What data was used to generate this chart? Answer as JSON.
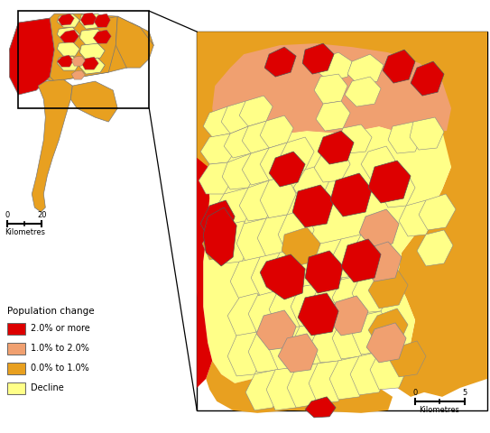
{
  "legend_title": "Population change",
  "legend_items": [
    {
      "label": "2.0% or more",
      "color": "#DD0000"
    },
    {
      "label": "1.0% to 2.0%",
      "color": "#F0A070"
    },
    {
      "label": "0.0% to 1.0%",
      "color": "#E8A020"
    },
    {
      "label": "Decline",
      "color": "#FFFF88"
    }
  ],
  "colors": {
    "red": "#DD0000",
    "orange": "#F0A070",
    "gold": "#E8A020",
    "yellow": "#FFFF88",
    "pale_yellow": "#FFFFBB",
    "border": "#555555",
    "background": "#FFFFFF"
  },
  "scale_small": {
    "label0": "0",
    "label1": "20",
    "unit": "Kilometres"
  },
  "scale_large": {
    "label0": "0",
    "label1": "5",
    "unit": "Kilometres"
  }
}
